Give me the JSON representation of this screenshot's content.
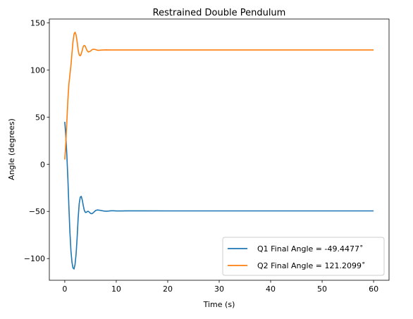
{
  "chart_data": {
    "type": "line",
    "title": "Restrained Double Pendulum",
    "xlabel": "Time (s)",
    "ylabel": "Angle (degrees)",
    "xlim": [
      -3,
      63
    ],
    "ylim": [
      -123,
      154
    ],
    "xticks": [
      0,
      10,
      20,
      30,
      40,
      50,
      60
    ],
    "yticks": [
      -100,
      -50,
      0,
      50,
      100,
      150
    ],
    "ytick_labels": [
      "−100",
      "−50",
      "0",
      "50",
      "100",
      "150"
    ],
    "grid": false,
    "legend_position": "bottom-right",
    "series": [
      {
        "name": "Q1 Final Angle = -49.4477˚",
        "color": "#1f77b4",
        "x": [
          0,
          0.2,
          0.4,
          0.6,
          0.8,
          1.0,
          1.2,
          1.4,
          1.6,
          1.8,
          2.0,
          2.2,
          2.4,
          2.6,
          2.8,
          3.0,
          3.2,
          3.4,
          3.6,
          3.8,
          4.0,
          4.2,
          4.4,
          4.6,
          4.8,
          5.0,
          5.2,
          5.4,
          5.6,
          5.8,
          6.0,
          6.3,
          6.6,
          7.0,
          7.5,
          8.0,
          8.5,
          9.0,
          9.5,
          10,
          11,
          12,
          15,
          20,
          30,
          40,
          50,
          60
        ],
        "y": [
          45,
          30,
          10,
          -15,
          -45,
          -72,
          -92,
          -104,
          -110,
          -111,
          -106,
          -95,
          -78,
          -57,
          -42,
          -35,
          -34,
          -38,
          -44,
          -49,
          -51,
          -51,
          -50,
          -50,
          -51,
          -52,
          -52.5,
          -52,
          -51,
          -50,
          -49,
          -48.5,
          -48.6,
          -49,
          -49.5,
          -49.8,
          -49.6,
          -49.3,
          -49.3,
          -49.5,
          -49.5,
          -49.4,
          -49.4,
          -49.45,
          -49.45,
          -49.45,
          -49.45,
          -49.45
        ]
      },
      {
        "name": "Q2 Final Angle = 121.2099˚",
        "color": "#ff7f0e",
        "x": [
          0,
          0.2,
          0.4,
          0.6,
          0.8,
          1.0,
          1.2,
          1.4,
          1.6,
          1.8,
          2.0,
          2.2,
          2.4,
          2.6,
          2.8,
          3.0,
          3.2,
          3.4,
          3.6,
          3.8,
          4.0,
          4.2,
          4.4,
          4.6,
          4.8,
          5.0,
          5.2,
          5.4,
          5.6,
          5.8,
          6.0,
          6.3,
          6.6,
          7.0,
          7.5,
          8.0,
          9.0,
          10,
          12,
          15,
          20,
          30,
          40,
          50,
          60
        ],
        "y": [
          5,
          22,
          45,
          68,
          85,
          95,
          105,
          118,
          130,
          138,
          140,
          137,
          130,
          121,
          116,
          115,
          117,
          121,
          125,
          126,
          125,
          122,
          120,
          119,
          119.5,
          120,
          121,
          121.8,
          122,
          121.8,
          121.5,
          121,
          120.8,
          121,
          121.2,
          121.3,
          121.2,
          121.2,
          121.2,
          121.2,
          121.2,
          121.2,
          121.2,
          121.2,
          121.2
        ]
      }
    ]
  }
}
